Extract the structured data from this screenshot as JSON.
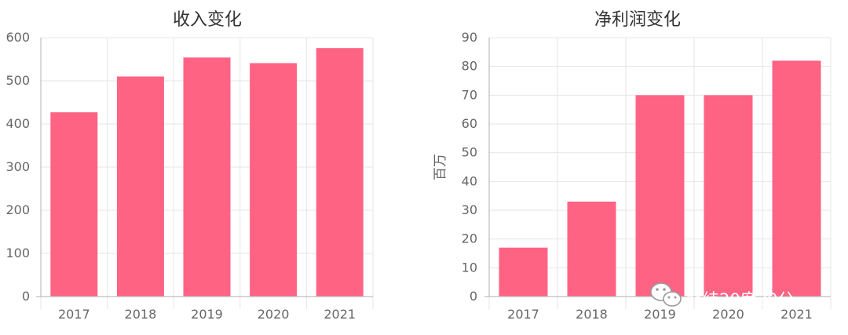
{
  "chart_data": [
    {
      "type": "bar",
      "title": "收入变化",
      "categories": [
        "2017",
        "2018",
        "2019",
        "2020",
        "2021"
      ],
      "values": [
        427,
        510,
        554,
        541,
        576
      ],
      "ylabel": "",
      "xlabel": "",
      "ylim": [
        0,
        600
      ],
      "yticks": [
        0,
        100,
        200,
        300,
        400,
        500,
        600
      ],
      "grid": true,
      "bar_color": "#ff6384"
    },
    {
      "type": "bar",
      "title": "净利润变化",
      "categories": [
        "2017",
        "2018",
        "2019",
        "2020",
        "2021"
      ],
      "values": [
        17,
        33,
        70,
        70,
        82
      ],
      "ylabel": "百万",
      "xlabel": "",
      "ylim": [
        0,
        90
      ],
      "yticks": [
        0,
        10,
        20,
        30,
        40,
        50,
        60,
        70,
        80,
        90
      ],
      "grid": true,
      "bar_color": "#ff6384"
    }
  ],
  "watermark": {
    "text": "北纬20度30分",
    "icon": "wechat-icon"
  },
  "colors": {
    "bar": "#ff6384",
    "grid": "#e6e6e6",
    "axis": "#bdbdbd",
    "text": "#666666",
    "title": "#333333"
  }
}
